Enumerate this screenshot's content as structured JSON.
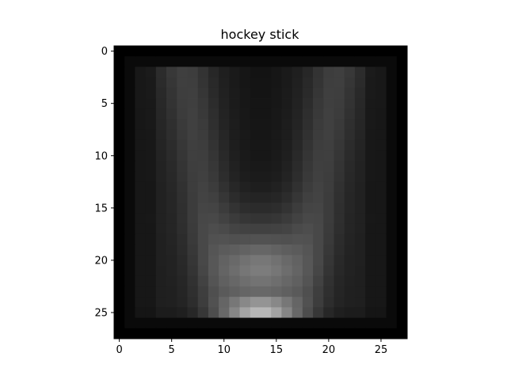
{
  "chart_data": {
    "type": "heatmap",
    "title": "hockey stick",
    "colormap": "gray",
    "rows": 28,
    "cols": 28,
    "x_ticks": [
      0,
      5,
      10,
      15,
      20,
      25
    ],
    "y_ticks": [
      0,
      5,
      10,
      15,
      20,
      25
    ],
    "xlim": [
      -0.5,
      27.5
    ],
    "ylim": [
      27.5,
      -0.5
    ],
    "value_range": [
      0,
      1
    ],
    "profile": {
      "description_free": true,
      "upper_peak_columns": [
        6,
        21
      ],
      "lower_peak_rows": [
        21,
        25
      ]
    }
  }
}
